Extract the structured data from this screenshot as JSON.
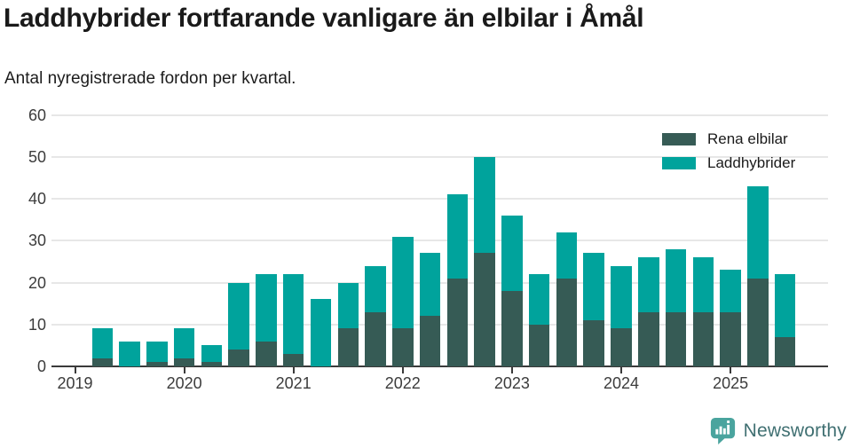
{
  "header": {
    "title": "Laddhybrider fortfarande vanligare än elbilar i Åmål",
    "subtitle": "Antal nyregistrerade fordon per kvartal."
  },
  "chart_data": {
    "type": "bar",
    "stacked": true,
    "title": "Laddhybrider fortfarande vanligare än elbilar i Åmål",
    "subtitle": "Antal nyregistrerade fordon per kvartal.",
    "categories": [
      "2019 Q2",
      "2019 Q3",
      "2019 Q4",
      "2020 Q1",
      "2020 Q2",
      "2020 Q3",
      "2020 Q4",
      "2021 Q1",
      "2021 Q2",
      "2021 Q3",
      "2021 Q4",
      "2022 Q1",
      "2022 Q2",
      "2022 Q3",
      "2022 Q4",
      "2023 Q1",
      "2023 Q2",
      "2023 Q3",
      "2023 Q4",
      "2024 Q1",
      "2024 Q2",
      "2024 Q3",
      "2024 Q4",
      "2025 Q1",
      "2025 Q2",
      "2025 Q3"
    ],
    "series": [
      {
        "name": "Rena elbilar",
        "color": "#365B55",
        "values": [
          2,
          0,
          1,
          2,
          1,
          4,
          6,
          3,
          0,
          9,
          13,
          9,
          12,
          21,
          27,
          18,
          10,
          21,
          11,
          9,
          13,
          13,
          13,
          13,
          21,
          7
        ]
      },
      {
        "name": "Laddhybrider",
        "color": "#00A39C",
        "values": [
          7,
          6,
          5,
          7,
          4,
          16,
          16,
          19,
          16,
          11,
          11,
          22,
          15,
          20,
          23,
          18,
          12,
          11,
          16,
          15,
          13,
          15,
          13,
          10,
          22,
          15
        ]
      }
    ],
    "ylim": [
      0,
      60
    ],
    "yticks": [
      0,
      10,
      20,
      30,
      40,
      50,
      60
    ],
    "xticks": [
      "2019",
      "2020",
      "2021",
      "2022",
      "2023",
      "2024",
      "2025"
    ],
    "grid": "horizontal",
    "legend_position": "top-right",
    "axis_color": "#3a3a3a",
    "grid_color": "#e7e7e7"
  },
  "footer": {
    "brand": "Newsworthy",
    "logo_color": "#4AA49E",
    "text_color": "#407072"
  }
}
